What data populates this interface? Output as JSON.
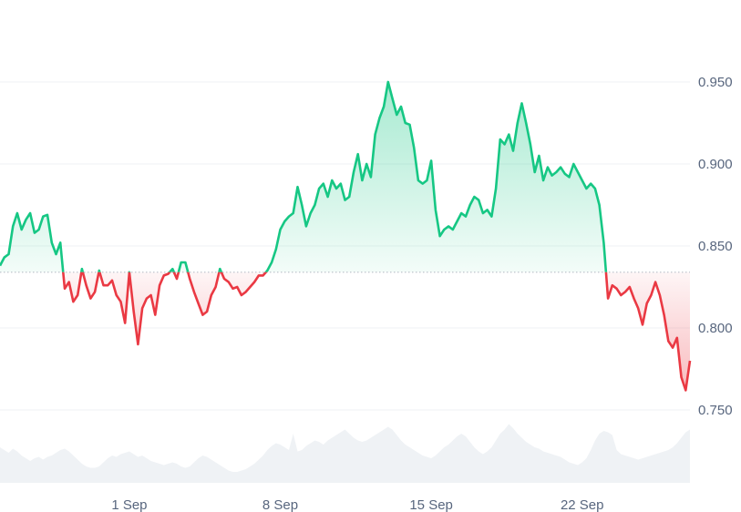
{
  "chart_data": {
    "type": "line",
    "title": "",
    "xlabel": "",
    "ylabel": "",
    "ylim": [
      0.75,
      0.95
    ],
    "y_ticks": [
      "0.950",
      "0.900",
      "0.850",
      "0.800",
      "0.750"
    ],
    "x_ticks": [
      "1 Sep",
      "8 Sep",
      "15 Sep",
      "22 Sep"
    ],
    "x_tick_values": [
      1,
      8,
      15,
      22
    ],
    "x_unit": "day of month (August 26 – September 26)",
    "baseline": 0.834,
    "grid": true,
    "legend": "none",
    "colors": {
      "above_baseline": "#16c784",
      "below_baseline": "#ea3943",
      "above_fill": "#16c784",
      "below_fill": "#ea3943",
      "baseline": "#b8bec8",
      "gridline": "#eff2f5",
      "volume_fill": "#eff2f5",
      "tick_text": "#58667e"
    },
    "series": [
      {
        "x": [
          -5.0,
          -4.8,
          -4.6,
          -4.4,
          -4.2,
          -4.0,
          -3.8,
          -3.6,
          -3.4,
          -3.2,
          -3.0,
          -2.8,
          -2.6,
          -2.4,
          -2.2,
          -2.0,
          -1.8,
          -1.6,
          -1.4,
          -1.2,
          -1.0,
          -0.8,
          -0.6,
          -0.4,
          -0.2,
          0.0,
          0.2,
          0.4,
          0.6,
          0.8,
          1.0,
          1.2,
          1.4,
          1.6,
          1.8,
          2.0,
          2.2,
          2.4,
          2.6,
          2.8,
          3.0,
          3.2,
          3.4,
          3.6,
          3.8,
          4.0,
          4.2,
          4.4,
          4.6,
          4.8,
          5.0,
          5.2,
          5.4,
          5.6,
          5.8,
          6.0,
          6.2,
          6.4,
          6.6,
          6.8,
          7.0,
          7.2,
          7.4,
          7.6,
          7.8,
          8.0,
          8.2,
          8.4,
          8.6,
          8.8,
          9.0,
          9.2,
          9.4,
          9.6,
          9.8,
          10.0,
          10.2,
          10.4,
          10.6,
          10.8,
          11.0,
          11.2,
          11.4,
          11.6,
          11.8,
          12.0,
          12.2,
          12.4,
          12.6,
          12.8,
          13.0,
          13.2,
          13.4,
          13.6,
          13.8,
          14.0,
          14.2,
          14.4,
          14.6,
          14.8,
          15.0,
          15.2,
          15.4,
          15.6,
          15.8,
          16.0,
          16.2,
          16.4,
          16.6,
          16.8,
          17.0,
          17.2,
          17.4,
          17.6,
          17.8,
          18.0,
          18.2,
          18.4,
          18.6,
          18.8,
          19.0,
          19.2,
          19.4,
          19.6,
          19.8,
          20.0,
          20.2,
          20.4,
          20.6,
          20.8,
          21.0,
          21.2,
          21.4,
          21.6,
          21.8,
          22.0,
          22.2,
          22.4,
          22.6,
          22.8,
          23.0,
          23.2,
          23.4,
          23.6,
          23.8,
          24.0,
          24.2,
          24.4,
          24.6,
          24.8,
          25.0,
          25.2,
          25.4,
          25.6,
          25.8,
          26.0,
          26.2,
          26.4,
          26.6,
          26.8,
          27.0
        ],
        "values": [
          0.838,
          0.843,
          0.845,
          0.862,
          0.87,
          0.86,
          0.866,
          0.87,
          0.858,
          0.86,
          0.868,
          0.869,
          0.852,
          0.845,
          0.852,
          0.824,
          0.828,
          0.816,
          0.82,
          0.836,
          0.826,
          0.818,
          0.822,
          0.835,
          0.826,
          0.826,
          0.829,
          0.82,
          0.816,
          0.803,
          0.834,
          0.81,
          0.79,
          0.812,
          0.818,
          0.82,
          0.808,
          0.826,
          0.832,
          0.833,
          0.836,
          0.83,
          0.84,
          0.84,
          0.83,
          0.822,
          0.815,
          0.808,
          0.81,
          0.82,
          0.825,
          0.836,
          0.83,
          0.828,
          0.824,
          0.825,
          0.82,
          0.822,
          0.825,
          0.828,
          0.832,
          0.832,
          0.835,
          0.84,
          0.848,
          0.86,
          0.865,
          0.868,
          0.87,
          0.886,
          0.875,
          0.862,
          0.87,
          0.875,
          0.885,
          0.888,
          0.88,
          0.89,
          0.885,
          0.888,
          0.878,
          0.88,
          0.895,
          0.906,
          0.89,
          0.9,
          0.892,
          0.918,
          0.928,
          0.935,
          0.95,
          0.94,
          0.93,
          0.935,
          0.925,
          0.924,
          0.91,
          0.89,
          0.888,
          0.89,
          0.902,
          0.872,
          0.856,
          0.86,
          0.862,
          0.86,
          0.865,
          0.87,
          0.868,
          0.875,
          0.88,
          0.878,
          0.87,
          0.872,
          0.868,
          0.885,
          0.915,
          0.912,
          0.918,
          0.908,
          0.925,
          0.937,
          0.925,
          0.912,
          0.895,
          0.905,
          0.89,
          0.898,
          0.893,
          0.895,
          0.898,
          0.894,
          0.892,
          0.9,
          0.895,
          0.89,
          0.885,
          0.888,
          0.885,
          0.875,
          0.852,
          0.818,
          0.826,
          0.824,
          0.82,
          0.822,
          0.825,
          0.818,
          0.812,
          0.802,
          0.815,
          0.82,
          0.828,
          0.82,
          0.808,
          0.792,
          0.788,
          0.794,
          0.77,
          0.762,
          0.78
        ]
      }
    ],
    "volume": {
      "ylim": [
        0,
        100
      ],
      "values": [
        52,
        48,
        44,
        50,
        46,
        40,
        36,
        32,
        36,
        38,
        34,
        38,
        40,
        44,
        48,
        50,
        46,
        40,
        34,
        28,
        24,
        22,
        22,
        24,
        30,
        36,
        40,
        38,
        42,
        44,
        46,
        42,
        38,
        40,
        36,
        32,
        30,
        28,
        26,
        28,
        30,
        28,
        24,
        22,
        24,
        30,
        36,
        40,
        38,
        34,
        30,
        26,
        22,
        18,
        16,
        16,
        18,
        20,
        24,
        28,
        34,
        40,
        48,
        54,
        58,
        56,
        52,
        48,
        72,
        46,
        48,
        54,
        58,
        62,
        60,
        56,
        62,
        66,
        70,
        74,
        78,
        72,
        66,
        62,
        60,
        62,
        66,
        70,
        74,
        78,
        82,
        78,
        70,
        62,
        56,
        52,
        48,
        44,
        40,
        38,
        36,
        40,
        46,
        52,
        56,
        62,
        68,
        72,
        68,
        60,
        52,
        46,
        42,
        46,
        52,
        62,
        72,
        78,
        86,
        80,
        72,
        66,
        60,
        56,
        52,
        50,
        46,
        44,
        42,
        40,
        38,
        34,
        30,
        28,
        26,
        30,
        36,
        48,
        62,
        72,
        76,
        74,
        70,
        48,
        42,
        40,
        38,
        36,
        34,
        36,
        38,
        40,
        42,
        44,
        46,
        48,
        52,
        58,
        66,
        74,
        78
      ]
    }
  }
}
